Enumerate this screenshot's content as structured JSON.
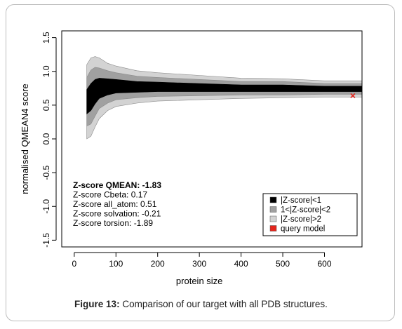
{
  "chart_data": {
    "type": "scatter",
    "xlabel": "protein size",
    "ylabel": "normalised QMEAN4 score",
    "xlim": [
      -30,
      690
    ],
    "ylim": [
      -1.6,
      1.6
    ],
    "x_ticks": [
      "0",
      "100",
      "200",
      "300",
      "400",
      "500",
      "600"
    ],
    "y_ticks": [
      "-1.5",
      "-1.0",
      "-0.5",
      "0.0",
      "0.5",
      "1.0",
      "1.5"
    ],
    "grid": false,
    "legend_position": "bottom-right",
    "series": [
      {
        "name": "|Z-score|<1",
        "color": "#000000",
        "envelope": {
          "x": [
            30,
            40,
            50,
            60,
            80,
            100,
            150,
            200,
            300,
            400,
            500,
            600,
            690
          ],
          "center": [
            0.55,
            0.62,
            0.7,
            0.75,
            0.77,
            0.78,
            0.77,
            0.77,
            0.76,
            0.75,
            0.75,
            0.74,
            0.74
          ],
          "half_width": [
            0.18,
            0.2,
            0.18,
            0.15,
            0.12,
            0.1,
            0.08,
            0.07,
            0.06,
            0.05,
            0.05,
            0.04,
            0.04
          ]
        }
      },
      {
        "name": "1<|Z-score|<2",
        "color": "#a0a0a0",
        "envelope": {
          "x": [
            30,
            40,
            50,
            60,
            80,
            100,
            150,
            200,
            300,
            400,
            500,
            600,
            690
          ],
          "center": [
            0.55,
            0.62,
            0.7,
            0.75,
            0.77,
            0.78,
            0.77,
            0.77,
            0.76,
            0.75,
            0.75,
            0.74,
            0.74
          ],
          "half_width": [
            0.36,
            0.4,
            0.36,
            0.3,
            0.24,
            0.2,
            0.16,
            0.14,
            0.12,
            0.1,
            0.1,
            0.08,
            0.08
          ]
        }
      },
      {
        "name": "|Z-score|>2",
        "color": "#d3d3d3",
        "envelope": {
          "x": [
            30,
            40,
            50,
            60,
            80,
            100,
            150,
            200,
            300,
            400,
            500,
            600,
            690
          ],
          "center": [
            0.55,
            0.62,
            0.7,
            0.75,
            0.77,
            0.78,
            0.77,
            0.77,
            0.76,
            0.75,
            0.75,
            0.74,
            0.74
          ],
          "half_width": [
            0.55,
            0.58,
            0.52,
            0.45,
            0.35,
            0.3,
            0.24,
            0.21,
            0.18,
            0.15,
            0.14,
            0.12,
            0.12
          ]
        }
      },
      {
        "name": "query model",
        "color": "#e3241b",
        "points": [
          {
            "x": 668,
            "y": 0.64
          }
        ]
      }
    ],
    "annotation": {
      "title": "Z-score QMEAN: -1.83",
      "lines": [
        "Z-score Cbeta: 0.17",
        "Z-score all_atom: 0.51",
        "Z-score solvation: -0.21",
        "Z-score torsion: -1.89"
      ]
    }
  },
  "caption": {
    "label": "Figure 13:",
    "text": " Comparison of our target with all PDB structures."
  }
}
